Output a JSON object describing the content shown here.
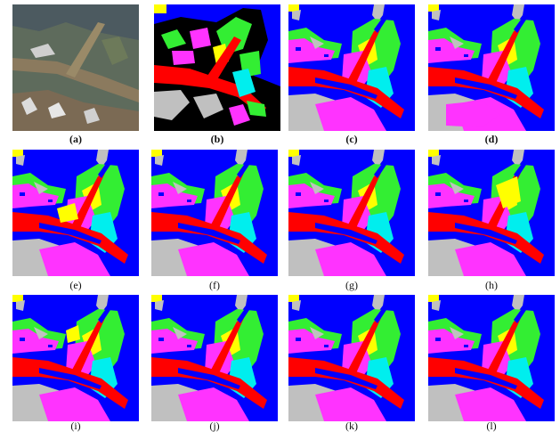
{
  "figure": {
    "panels": [
      {
        "id": "a",
        "label": "(a)",
        "kind": "satellite-photo"
      },
      {
        "id": "b",
        "label": "(b)",
        "kind": "ground-truth-map"
      },
      {
        "id": "c",
        "label": "(c)",
        "kind": "classification-map"
      },
      {
        "id": "d",
        "label": "(d)",
        "kind": "classification-map"
      },
      {
        "id": "e",
        "label": "(e)",
        "kind": "classification-map"
      },
      {
        "id": "f",
        "label": "(f)",
        "kind": "classification-map"
      },
      {
        "id": "g",
        "label": "(g)",
        "kind": "classification-map"
      },
      {
        "id": "h",
        "label": "(h)",
        "kind": "classification-map"
      },
      {
        "id": "i",
        "label": "(i)",
        "kind": "classification-map"
      },
      {
        "id": "j",
        "label": "(j)",
        "kind": "classification-map"
      },
      {
        "id": "k",
        "label": "(k)",
        "kind": "classification-map"
      },
      {
        "id": "l",
        "label": "(l)",
        "kind": "classification-map"
      }
    ],
    "class_colors": {
      "water": "#0000ff",
      "river": "#ff0000",
      "vegetation": "#33ee33",
      "wetland": "#ff33ff",
      "tidal-flat": "#00eeee",
      "crop": "#ffff00",
      "bare": "#c0c0c0",
      "unlabeled": "#000000"
    }
  }
}
